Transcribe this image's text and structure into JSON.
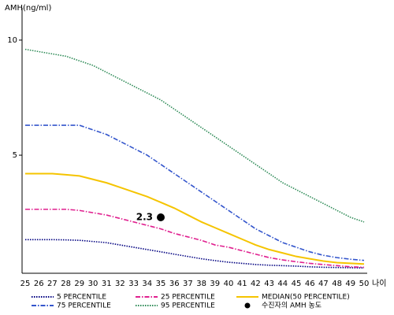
{
  "chart_data": {
    "type": "line",
    "y_label": "AMH(ng/ml)",
    "x_label": "나이",
    "x": [
      25,
      26,
      27,
      28,
      29,
      30,
      31,
      32,
      33,
      34,
      35,
      36,
      37,
      38,
      39,
      40,
      41,
      42,
      43,
      44,
      45,
      46,
      47,
      48,
      49,
      50
    ],
    "xlim": [
      25,
      50
    ],
    "ylim": [
      -0.13,
      11.4
    ],
    "yticks": [
      5,
      10
    ],
    "series": [
      {
        "name": "5 PERCENTILE",
        "color": "#000080",
        "style": "dotted",
        "values": [
          1.33,
          1.33,
          1.33,
          1.32,
          1.3,
          1.25,
          1.2,
          1.1,
          1.0,
          0.9,
          0.8,
          0.7,
          0.6,
          0.5,
          0.42,
          0.35,
          0.3,
          0.25,
          0.22,
          0.2,
          0.18,
          0.15,
          0.13,
          0.12,
          0.11,
          0.1
        ]
      },
      {
        "name": "25 PERCENTILE",
        "color": "#e0208f",
        "style": "dashdot",
        "values": [
          2.65,
          2.65,
          2.65,
          2.65,
          2.6,
          2.5,
          2.4,
          2.25,
          2.1,
          1.95,
          1.8,
          1.6,
          1.45,
          1.3,
          1.1,
          1.0,
          0.85,
          0.7,
          0.55,
          0.45,
          0.37,
          0.3,
          0.25,
          0.2,
          0.15,
          0.13
        ]
      },
      {
        "name": "MEDIAN(50 PERCENTILE)",
        "color": "#f5c400",
        "style": "solid",
        "values": [
          4.2,
          4.2,
          4.2,
          4.15,
          4.1,
          3.95,
          3.8,
          3.6,
          3.4,
          3.2,
          2.95,
          2.7,
          2.4,
          2.1,
          1.85,
          1.6,
          1.35,
          1.1,
          0.9,
          0.75,
          0.6,
          0.5,
          0.4,
          0.33,
          0.3,
          0.27
        ]
      },
      {
        "name": "75 PERCENTILE",
        "color": "#3355cc",
        "style": "dashdot",
        "values": [
          6.3,
          6.3,
          6.3,
          6.3,
          6.3,
          6.1,
          5.9,
          5.6,
          5.3,
          5.0,
          4.6,
          4.2,
          3.8,
          3.4,
          3.0,
          2.6,
          2.2,
          1.8,
          1.5,
          1.2,
          1.0,
          0.8,
          0.65,
          0.55,
          0.48,
          0.43
        ]
      },
      {
        "name": "95 PERCENTILE",
        "color": "#2e8b57",
        "style": "dotted",
        "values": [
          9.6,
          9.5,
          9.4,
          9.3,
          9.1,
          8.9,
          8.6,
          8.3,
          8.0,
          7.7,
          7.4,
          7.0,
          6.6,
          6.2,
          5.8,
          5.4,
          5.0,
          4.6,
          4.2,
          3.8,
          3.5,
          3.2,
          2.9,
          2.6,
          2.3,
          2.1
        ]
      }
    ],
    "point": {
      "name": "수진자의 AMH 농도",
      "x": 35,
      "value": 2.3,
      "value_label": "2.3",
      "color": "#000"
    }
  }
}
